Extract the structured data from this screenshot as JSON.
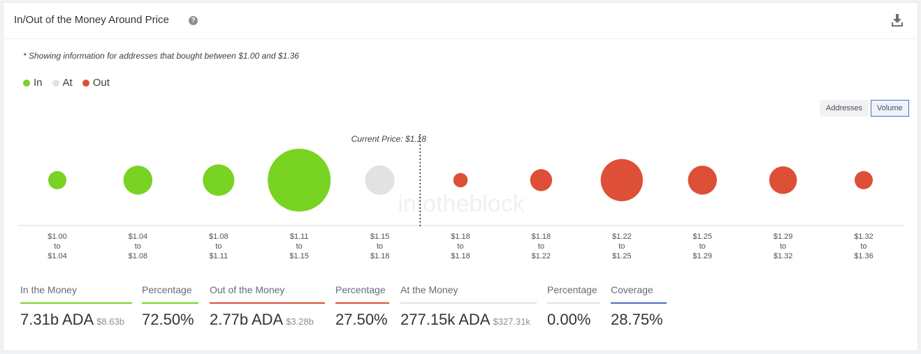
{
  "header": {
    "title": "In/Out of the Money Around Price",
    "help_icon": "question-icon",
    "download_icon": "download-icon"
  },
  "note": "* Showing information for addresses that bought between $1.00 and $1.36",
  "legend": [
    {
      "label": "In",
      "color": "#78d322"
    },
    {
      "label": "At",
      "color": "#e2e2e4"
    },
    {
      "label": "Out",
      "color": "#dd4f37"
    }
  ],
  "toggle": {
    "addresses": "Addresses",
    "volume": "Volume",
    "selected": "Volume"
  },
  "chart_data": {
    "type": "bubble",
    "current_price_label": "Current Price: $1.18",
    "watermark": "intotheblock",
    "bins": [
      {
        "from": "$1.00",
        "to": "$1.04",
        "status": "in",
        "size": 0.29
      },
      {
        "from": "$1.04",
        "to": "$1.08",
        "status": "in",
        "size": 0.46
      },
      {
        "from": "$1.08",
        "to": "$1.11",
        "status": "in",
        "size": 0.5
      },
      {
        "from": "$1.11",
        "to": "$1.15",
        "status": "in",
        "size": 1.0
      },
      {
        "from": "$1.15",
        "to": "$1.18",
        "status": "at",
        "size": 0.47
      },
      {
        "from": "$1.18",
        "to": "$1.18",
        "status": "out",
        "size": 0.23
      },
      {
        "from": "$1.18",
        "to": "$1.22",
        "status": "out",
        "size": 0.35
      },
      {
        "from": "$1.22",
        "to": "$1.25",
        "status": "out",
        "size": 0.67
      },
      {
        "from": "$1.25",
        "to": "$1.29",
        "status": "out",
        "size": 0.46
      },
      {
        "from": "$1.29",
        "to": "$1.32",
        "status": "out",
        "size": 0.44
      },
      {
        "from": "$1.32",
        "to": "$1.36",
        "status": "out",
        "size": 0.29
      }
    ],
    "to_word": "to"
  },
  "stats": {
    "in_money": {
      "label": "In the Money",
      "value": "7.31b ADA",
      "sub": "$8.63b",
      "color": "#78d322"
    },
    "in_pct": {
      "label": "Percentage",
      "value": "72.50%",
      "color": "#78d322"
    },
    "out_money": {
      "label": "Out of the Money",
      "value": "2.77b ADA",
      "sub": "$3.28b",
      "color": "#dd4f37"
    },
    "out_pct": {
      "label": "Percentage",
      "value": "27.50%",
      "color": "#dd4f37"
    },
    "at_money": {
      "label": "At the Money",
      "value": "277.15k ADA",
      "sub": "$327.31k",
      "color": "#e2e2e4"
    },
    "at_pct": {
      "label": "Percentage",
      "value": "0.00%",
      "color": "#e2e2e4"
    },
    "coverage": {
      "label": "Coverage",
      "value": "28.75%",
      "color": "#4a6fc4"
    }
  }
}
